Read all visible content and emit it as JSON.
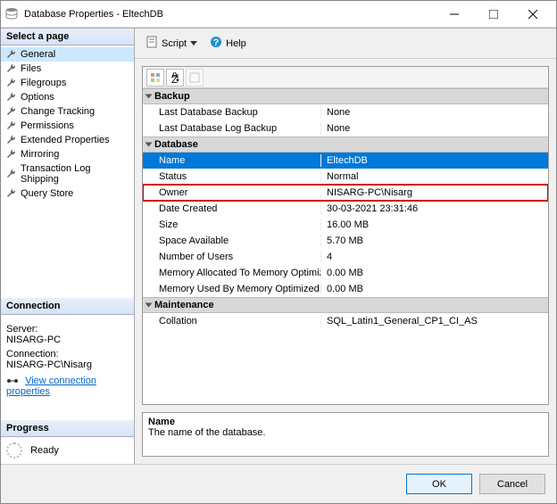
{
  "window": {
    "title": "Database Properties - EltechDB"
  },
  "leftpanel": {
    "select_header": "Select a page",
    "pages": [
      {
        "label": "General",
        "selected": true
      },
      {
        "label": "Files",
        "selected": false
      },
      {
        "label": "Filegroups",
        "selected": false
      },
      {
        "label": "Options",
        "selected": false
      },
      {
        "label": "Change Tracking",
        "selected": false
      },
      {
        "label": "Permissions",
        "selected": false
      },
      {
        "label": "Extended Properties",
        "selected": false
      },
      {
        "label": "Mirroring",
        "selected": false
      },
      {
        "label": "Transaction Log Shipping",
        "selected": false
      },
      {
        "label": "Query Store",
        "selected": false
      }
    ],
    "connection_header": "Connection",
    "server_label": "Server:",
    "server_value": "NISARG-PC",
    "connection_label": "Connection:",
    "connection_value": "NISARG-PC\\Nisarg",
    "view_conn_link": "View connection properties",
    "progress_header": "Progress",
    "progress_status": "Ready"
  },
  "toolbar": {
    "script": "Script",
    "help": "Help"
  },
  "grid": {
    "categories": [
      {
        "name": "Backup",
        "rows": [
          {
            "k": "Last Database Backup",
            "v": "None",
            "sel": false,
            "hl": false
          },
          {
            "k": "Last Database Log Backup",
            "v": "None",
            "sel": false,
            "hl": false
          }
        ]
      },
      {
        "name": "Database",
        "rows": [
          {
            "k": "Name",
            "v": "EltechDB",
            "sel": true,
            "hl": false
          },
          {
            "k": "Status",
            "v": "Normal",
            "sel": false,
            "hl": false
          },
          {
            "k": "Owner",
            "v": "NISARG-PC\\Nisarg",
            "sel": false,
            "hl": true
          },
          {
            "k": "Date Created",
            "v": "30-03-2021 23:31:46",
            "sel": false,
            "hl": false
          },
          {
            "k": "Size",
            "v": "16.00 MB",
            "sel": false,
            "hl": false
          },
          {
            "k": "Space Available",
            "v": "5.70 MB",
            "sel": false,
            "hl": false
          },
          {
            "k": "Number of Users",
            "v": "4",
            "sel": false,
            "hl": false
          },
          {
            "k": "Memory Allocated To Memory Optimized Obj",
            "v": "0.00 MB",
            "sel": false,
            "hl": false
          },
          {
            "k": "Memory Used By Memory Optimized Objects",
            "v": "0.00 MB",
            "sel": false,
            "hl": false
          }
        ]
      },
      {
        "name": "Maintenance",
        "rows": [
          {
            "k": "Collation",
            "v": "SQL_Latin1_General_CP1_CI_AS",
            "sel": false,
            "hl": false
          }
        ]
      }
    ]
  },
  "description": {
    "title": "Name",
    "text": "The name of the database."
  },
  "footer": {
    "ok": "OK",
    "cancel": "Cancel"
  },
  "colors": {
    "sel_row": "#0078d7",
    "hl_border": "#d40000"
  }
}
